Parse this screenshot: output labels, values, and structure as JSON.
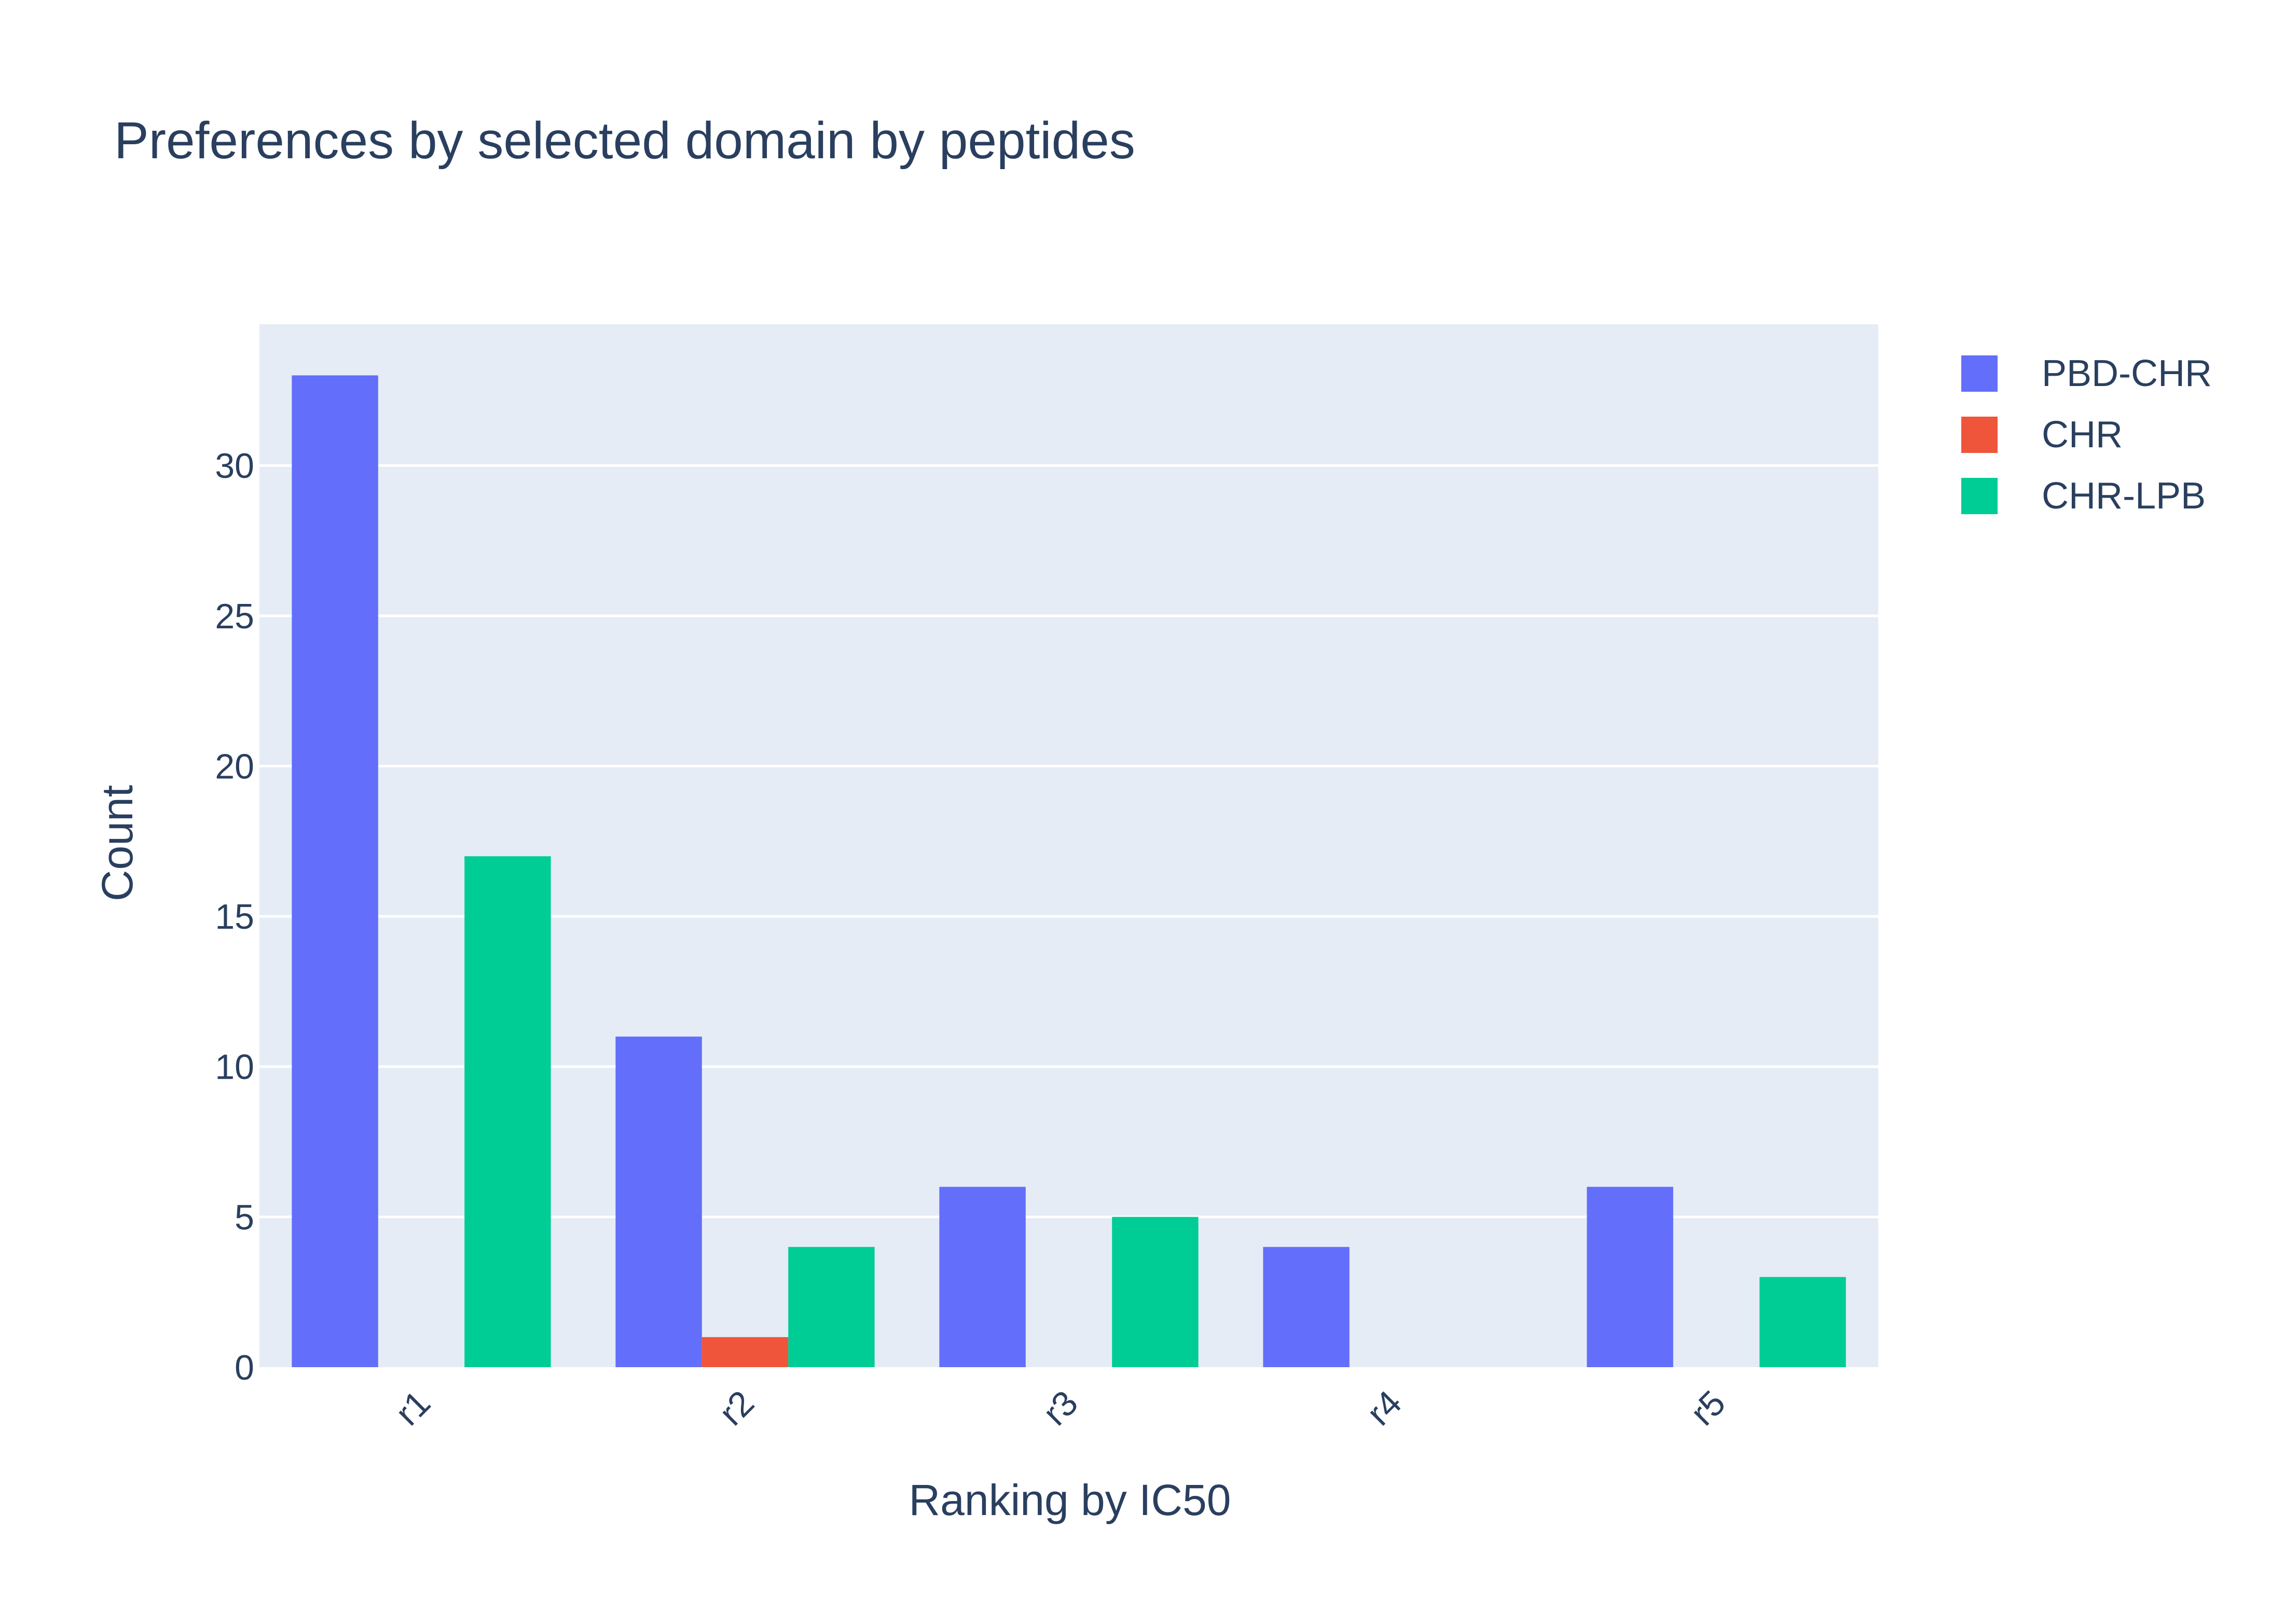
{
  "chart_data": {
    "type": "bar",
    "title": "Preferences by selected domain by peptides",
    "xlabel": "Ranking by IC50",
    "ylabel": "Count",
    "categories": [
      "r1",
      "r2",
      "r3",
      "r4",
      "r5"
    ],
    "series": [
      {
        "name": "PBD-CHR",
        "color": "#636efa",
        "values": [
          33,
          11,
          6,
          4,
          6
        ]
      },
      {
        "name": "CHR",
        "color": "#ef553b",
        "values": [
          0,
          1,
          0,
          0,
          0
        ]
      },
      {
        "name": "CHR-LPB",
        "color": "#00cc96",
        "values": [
          17,
          4,
          5,
          0,
          3
        ]
      }
    ],
    "ylim": [
      0,
      34.7
    ],
    "yticks": [
      0,
      5,
      10,
      15,
      20,
      25,
      30
    ],
    "grid": true,
    "legend_position": "top-right",
    "plot_background": "#e5ecf6",
    "x_tick_rotation": "-45"
  }
}
